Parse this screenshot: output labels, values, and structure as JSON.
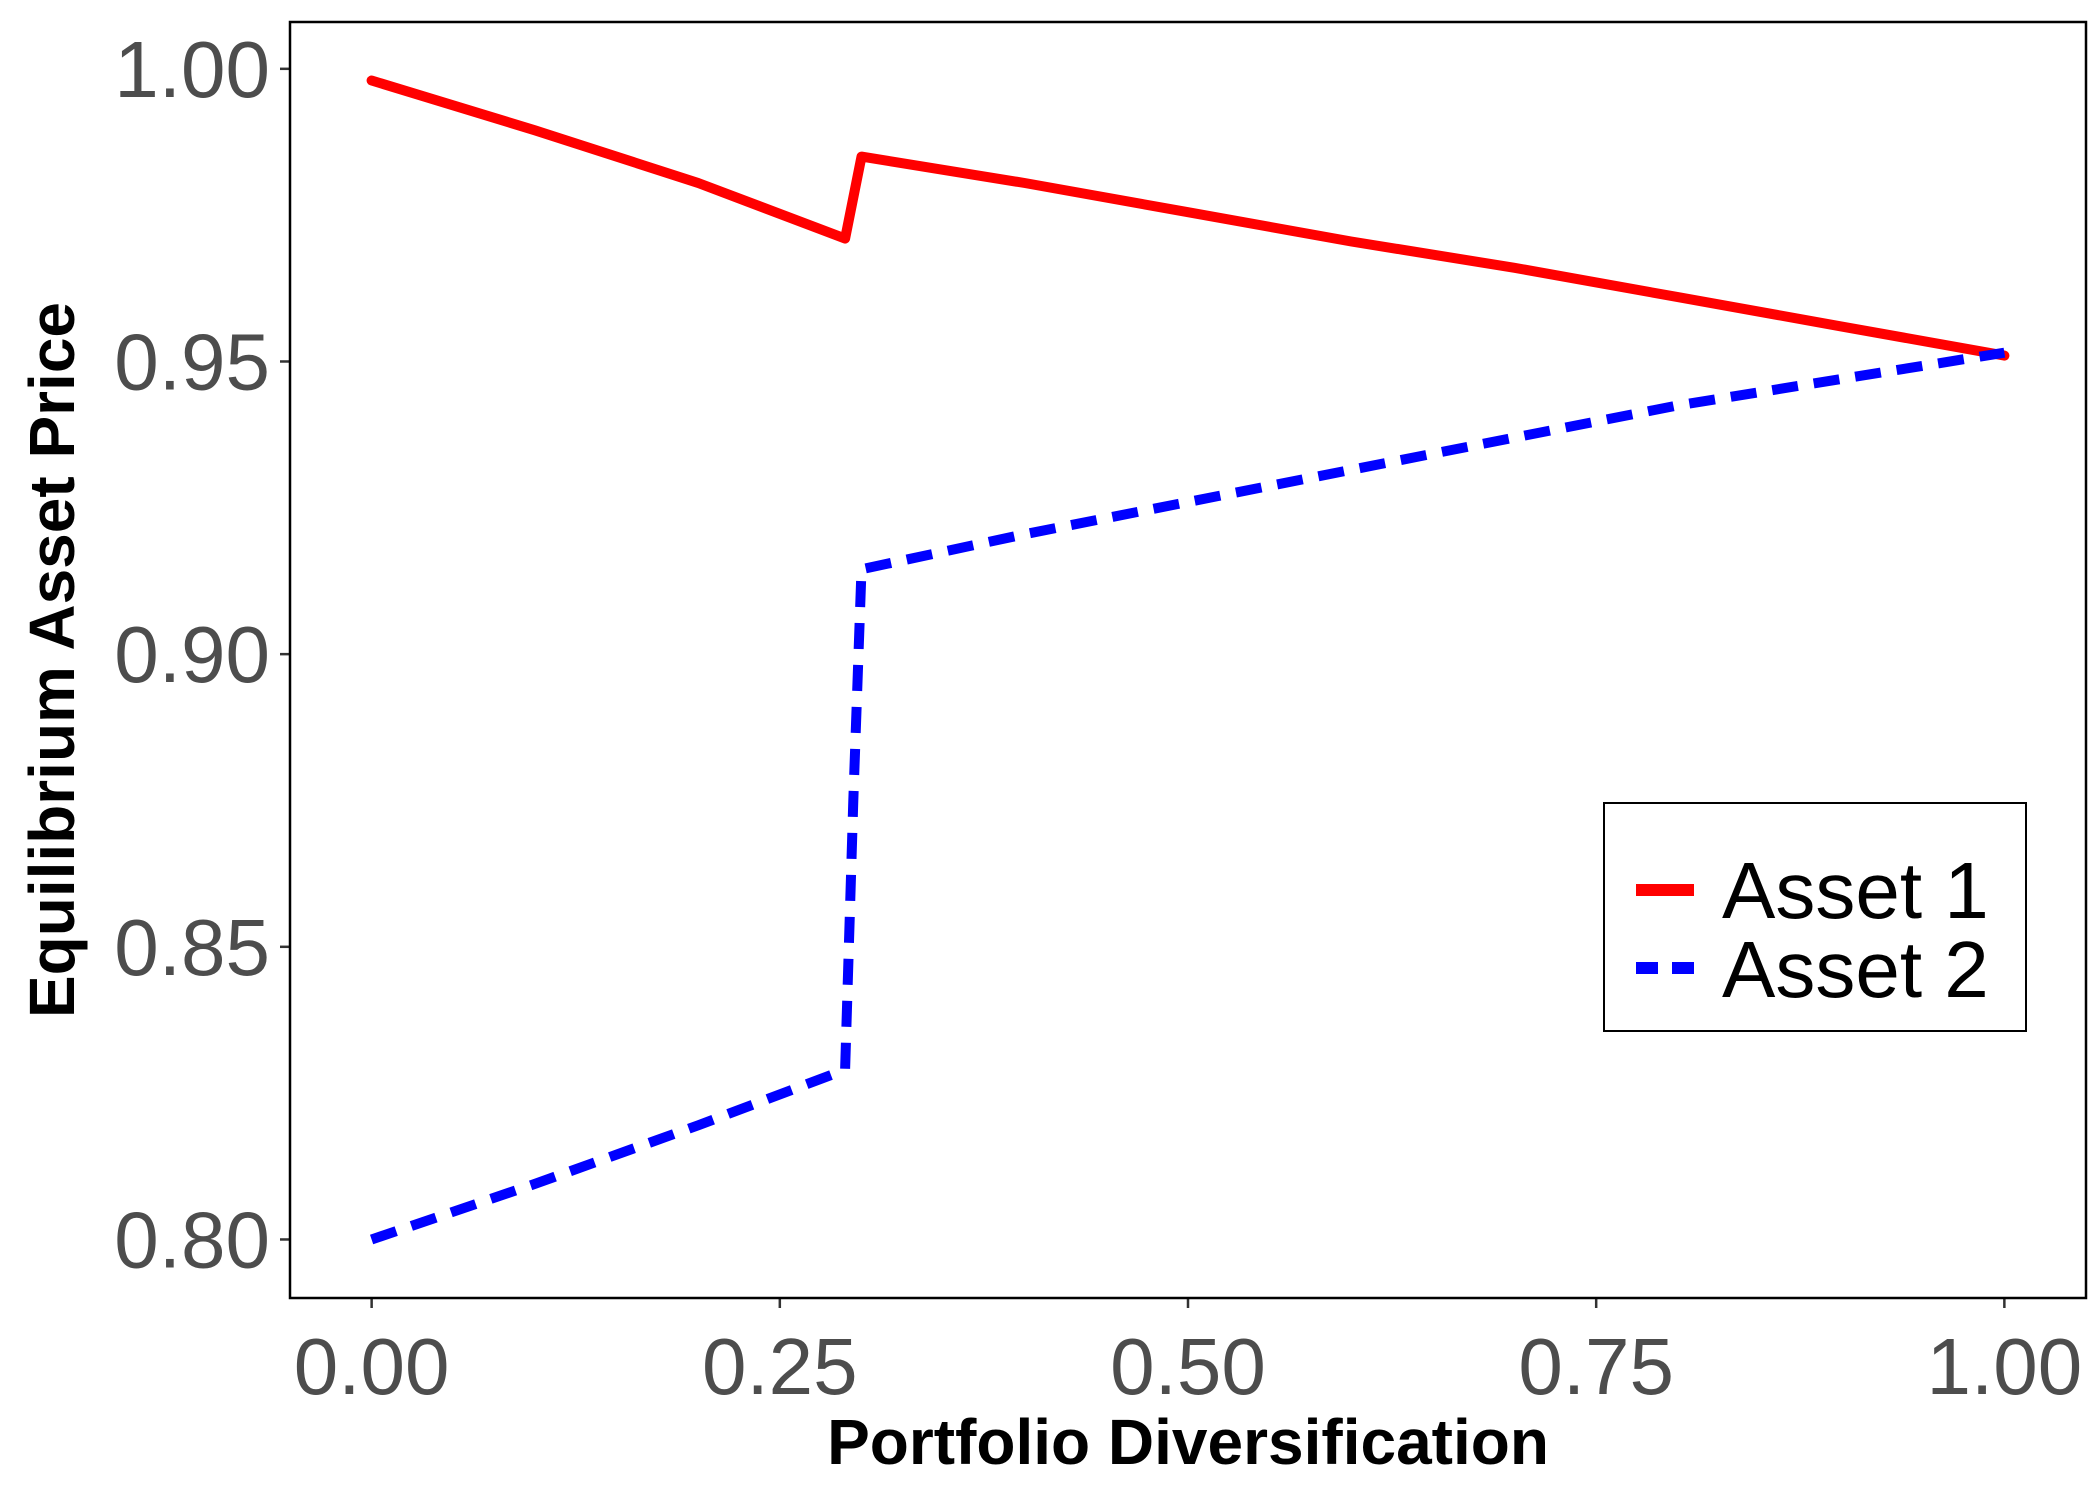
{
  "chart_data": {
    "type": "line",
    "title": "",
    "xlabel": "Portfolio Diversification",
    "ylabel": "Equilibrium Asset Price",
    "xlim": [
      -0.05,
      1.05
    ],
    "ylim": [
      0.79,
      1.008
    ],
    "x_ticks": [
      0.0,
      0.25,
      0.5,
      0.75,
      1.0
    ],
    "x_tick_labels": [
      "0.00",
      "0.25",
      "0.50",
      "0.75",
      "1.00"
    ],
    "y_ticks": [
      0.8,
      0.85,
      0.9,
      0.95,
      1.0
    ],
    "y_tick_labels": [
      "0.80",
      "0.85",
      "0.90",
      "0.95",
      "1.00"
    ],
    "grid": false,
    "legend_position": "right",
    "series": [
      {
        "name": "Asset 1",
        "color": "#ff0000",
        "line_style": "solid",
        "x": [
          0.0,
          0.1,
          0.2,
          0.29,
          0.3,
          0.4,
          0.5,
          0.6,
          0.7,
          0.8,
          0.9,
          1.0
        ],
        "y": [
          0.998,
          0.9895,
          0.9805,
          0.971,
          0.985,
          0.9805,
          0.9755,
          0.9705,
          0.966,
          0.961,
          0.956,
          0.951
        ]
      },
      {
        "name": "Asset 2",
        "color": "#0000ff",
        "line_style": "dashed",
        "x": [
          0.0,
          0.1,
          0.2,
          0.29,
          0.295,
          0.3,
          0.4,
          0.5,
          0.6,
          0.7,
          0.8,
          0.9,
          1.0
        ],
        "y": [
          0.8,
          0.8095,
          0.8195,
          0.829,
          0.875,
          0.9145,
          0.9205,
          0.926,
          0.9315,
          0.937,
          0.9425,
          0.947,
          0.9515
        ]
      }
    ]
  }
}
